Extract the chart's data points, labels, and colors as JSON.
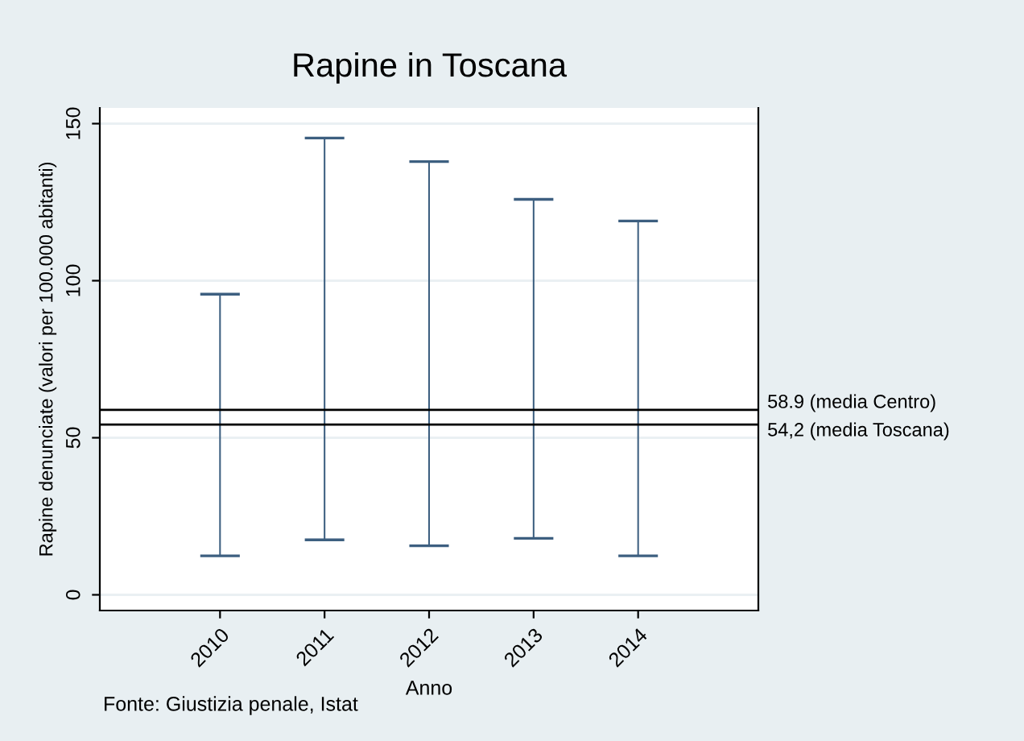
{
  "chart_data": {
    "type": "bar",
    "title": "Rapine in Toscana",
    "xlabel": "Anno",
    "ylabel": "Rapine denunciate (valori per 100.000 abitanti)",
    "x": [
      2010,
      2011,
      2012,
      2013,
      2014
    ],
    "base": [
      12.4,
      17.5,
      15.6,
      18.0,
      12.4
    ],
    "values": [
      83.3,
      127.9,
      122.3,
      107.9,
      106.6
    ],
    "color": "#3d5f80",
    "xlim": [
      2008.85,
      2015.15
    ],
    "xticks": [
      2010,
      2011,
      2012,
      2013,
      2014
    ],
    "ylim": [
      -5,
      155
    ],
    "yticks": [
      0,
      50,
      100,
      150
    ],
    "grid": "y",
    "ref_lines": [
      {
        "axis": "y",
        "value": 58.9,
        "label": "58.9 (media Centro)",
        "color": "#000000"
      },
      {
        "axis": "y",
        "value": 54.2,
        "label": "54,2 (media Toscana)",
        "color": "#000000"
      }
    ],
    "annotations": [
      "Fonte: Giustizia penale, Istat"
    ]
  }
}
